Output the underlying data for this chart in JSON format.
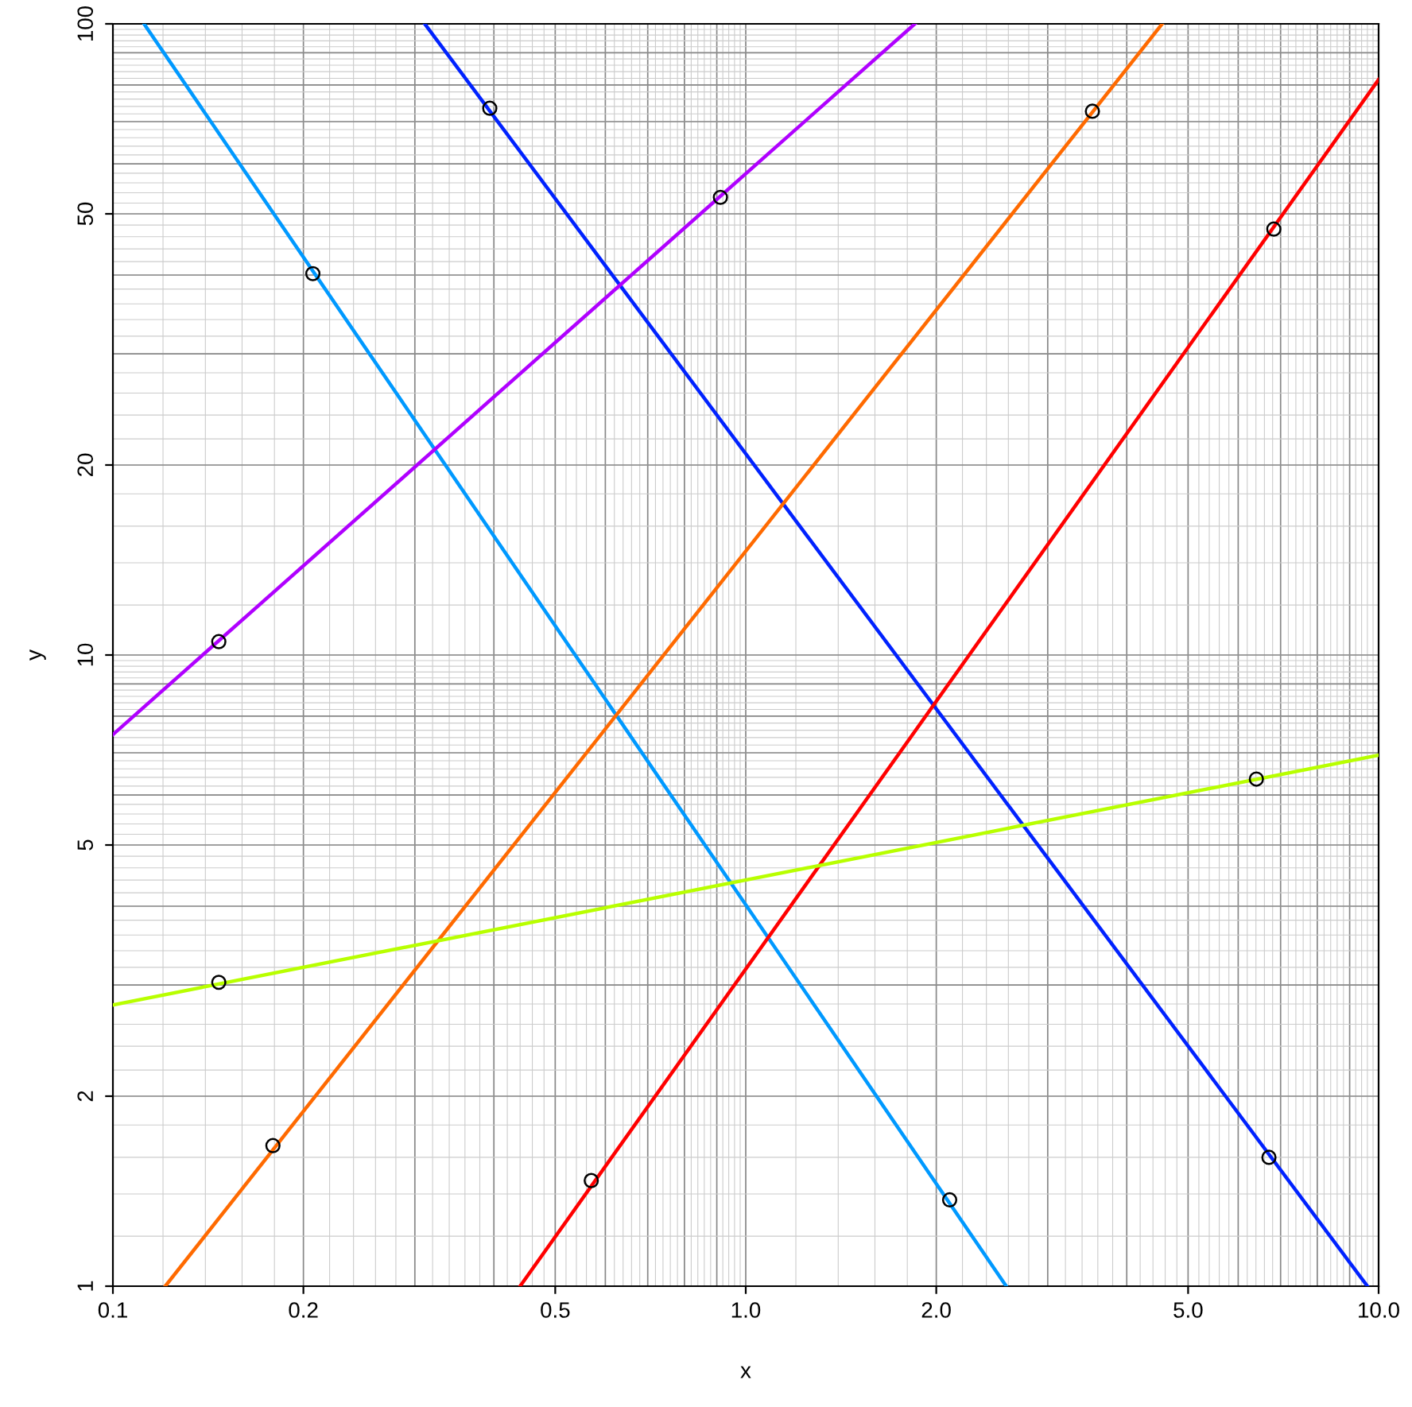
{
  "chart_data": {
    "type": "line",
    "xlabel": "x",
    "ylabel": "y",
    "log": "xy",
    "grid": true,
    "legend": false,
    "xlim": [
      0.1,
      10
    ],
    "ylim": [
      1,
      100
    ],
    "xticks": [
      0.1,
      0.2,
      0.5,
      {
        "value": 1,
        "label": "1.0"
      },
      {
        "value": 2,
        "label": "2.0"
      },
      {
        "value": 5,
        "label": "5.0"
      },
      {
        "value": 10,
        "label": "10.0"
      }
    ],
    "yticks": [
      1,
      2,
      5,
      10,
      20,
      50,
      100
    ],
    "series": [
      {
        "color": "#0099ff",
        "line_style": "solid",
        "marker": "none",
        "x": [
          0.112,
          2.58
        ],
        "values": [
          100,
          1
        ]
      },
      {
        "color": "#0022ff",
        "line_style": "solid",
        "marker": "none",
        "x": [
          0.311,
          9.6
        ],
        "values": [
          100,
          1
        ]
      },
      {
        "color": "#b000ff",
        "line_style": "solid",
        "marker": "none",
        "x": [
          0.1,
          1.85
        ],
        "values": [
          7.48,
          100
        ]
      },
      {
        "color": "#ff6a00",
        "line_style": "solid",
        "marker": "none",
        "x": [
          0.121,
          4.55
        ],
        "values": [
          1,
          100
        ]
      },
      {
        "color": "#ff0000",
        "line_style": "solid",
        "marker": "none",
        "x": [
          0.44,
          10
        ],
        "values": [
          1,
          81.6
        ]
      },
      {
        "color": "#b8ff00",
        "line_style": "solid",
        "marker": "none",
        "x": [
          0.1,
          10
        ],
        "values": [
          2.79,
          6.94
        ]
      },
      {
        "type": "scatter",
        "color": "#000000",
        "marker": "circle",
        "x": [
          0.207,
          2.1,
          0.394,
          6.71,
          0.147,
          0.912,
          0.179,
          3.53,
          0.57,
          6.83,
          0.147,
          6.41
        ],
        "values": [
          40.2,
          1.37,
          73.5,
          1.6,
          10.5,
          53.1,
          1.67,
          72.7,
          1.47,
          47.3,
          3.03,
          6.36
        ]
      }
    ]
  }
}
